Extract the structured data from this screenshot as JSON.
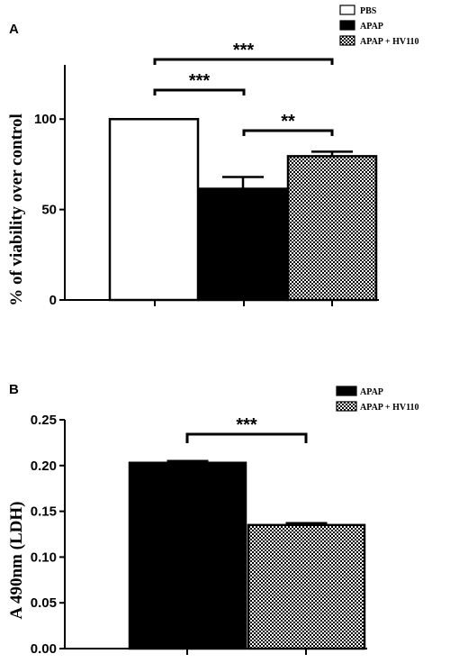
{
  "chart_data": [
    {
      "type": "bar",
      "panel": "A",
      "ylabel": "% of viability over control",
      "ylim": [
        0,
        130
      ],
      "yticks": [
        0,
        50,
        100
      ],
      "categories": [
        "PBS",
        "APAP",
        "APAP + HV110"
      ],
      "values": [
        100,
        61.5,
        79.5
      ],
      "errors": [
        0,
        6.5,
        2.5
      ],
      "fills": [
        "white",
        "black",
        "checker"
      ],
      "legend": [
        "PBS",
        "APAP",
        "APAP + HV110"
      ],
      "legend_position": "top-right",
      "significance": [
        {
          "from": 1,
          "to": 3,
          "label": "***"
        },
        {
          "from": 1,
          "to": 2,
          "label": "***"
        },
        {
          "from": 2,
          "to": 3,
          "label": "**"
        }
      ]
    },
    {
      "type": "bar",
      "panel": "B",
      "ylabel": "A 490nm (LDH)",
      "ylim": [
        0,
        0.25
      ],
      "yticks": [
        "0.00",
        "0.05",
        "0.10",
        "0.15",
        "0.20",
        "0.25"
      ],
      "categories": [
        "APAP",
        "APAP + HV110"
      ],
      "values": [
        0.203,
        0.135
      ],
      "errors": [
        0.002,
        0.002
      ],
      "fills": [
        "black",
        "checker"
      ],
      "legend": [
        "APAP",
        "APAP + HV110"
      ],
      "legend_position": "top-right",
      "significance": [
        {
          "from": 1,
          "to": 2,
          "label": "***"
        }
      ]
    }
  ]
}
